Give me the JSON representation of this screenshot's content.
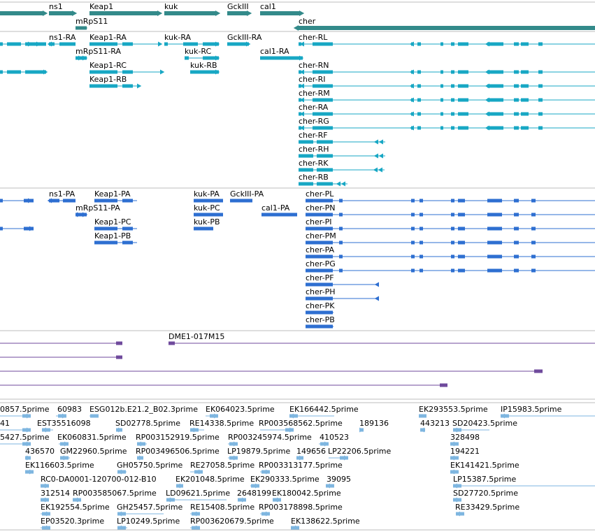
{
  "colors": {
    "gene": "#338a8a",
    "mrna": "#17a7c4",
    "protein": "#2e6fd1",
    "contig": "#6f4a9c",
    "est": "#7eb6e0",
    "divider": "#bdbdbd",
    "label": "#000000"
  },
  "tracks": {
    "genes": {
      "labels": [
        "ns1",
        "Keap1",
        "kuk",
        "GckIII",
        "cal1",
        "mRpS11",
        "cher"
      ]
    },
    "transcripts": {
      "labels": [
        "ns1-RA",
        "Keap1-RA",
        "kuk-RA",
        "GckIII-RA",
        "cher-RL",
        "mRpS11-RA",
        "kuk-RC",
        "cal1-RA",
        "Keap1-RC",
        "kuk-RB",
        "cher-RN",
        "Keap1-RB",
        "cher-RI",
        "cher-RM",
        "cher-RA",
        "cher-RG",
        "cher-RF",
        "cher-RH",
        "cher-RK",
        "cher-RB"
      ]
    },
    "proteins": {
      "labels": [
        "ns1-PA",
        "Keap1-PA",
        "kuk-PA",
        "GckIII-PA",
        "cher-PL",
        "mRpS11-PA",
        "kuk-PC",
        "cal1-PA",
        "cher-PN",
        "Keap1-PC",
        "kuk-PB",
        "cher-PI",
        "Keap1-PB",
        "cher-PM",
        "cher-PA",
        "cher-PG",
        "cher-PF",
        "cher-PH",
        "cher-PK",
        "cher-PB"
      ]
    },
    "contigs": {
      "labels": [
        "DME1-017M15"
      ]
    },
    "ests": {
      "labels": [
        "0857.5prime",
        "60983",
        "ESG012b.E21.2_B02.3prime",
        "EK064023.5prime",
        "EK166442.5prime",
        "EK293553.5prime",
        "IP15983.5prime",
        "41",
        "EST35516098",
        "SD02778.5prime",
        "RE14338.5prime",
        "RP003568562.5prime",
        "189136",
        "443213",
        "SD20423.5prime",
        "5427.5prime",
        "EK060831.5prime",
        "RP003152919.5prime",
        "RP003245974.5prime",
        "410523",
        "328498",
        "436570",
        "GM22960.5prime",
        "RP003496506.5prime",
        "LP19879.5prime",
        "149656",
        "LP22206.5prime",
        "194221",
        "EK116603.5prime",
        "GH05750.5prime",
        "RE27058.5prime",
        "RP003313177.5prime",
        "EK141421.5prime",
        "RC0-DA0001-120700-012-B10",
        "EK201048.5prime",
        "EK290333.5prime",
        "39095",
        "LP15387.5prime",
        "312514",
        "RP003585067.5prime",
        "LD09621.5prime",
        "2648199",
        "EK180042.5prime",
        "SD27720.5prime",
        "EK192554.5prime",
        "GH25457.5prime",
        "RE15408.5prime",
        "RP003178898.5prime",
        "RE33429.5prime",
        "EP03520.3prime",
        "LP10249.5prime",
        "RP003620679.5prime",
        "EK138622.5prime"
      ]
    }
  }
}
